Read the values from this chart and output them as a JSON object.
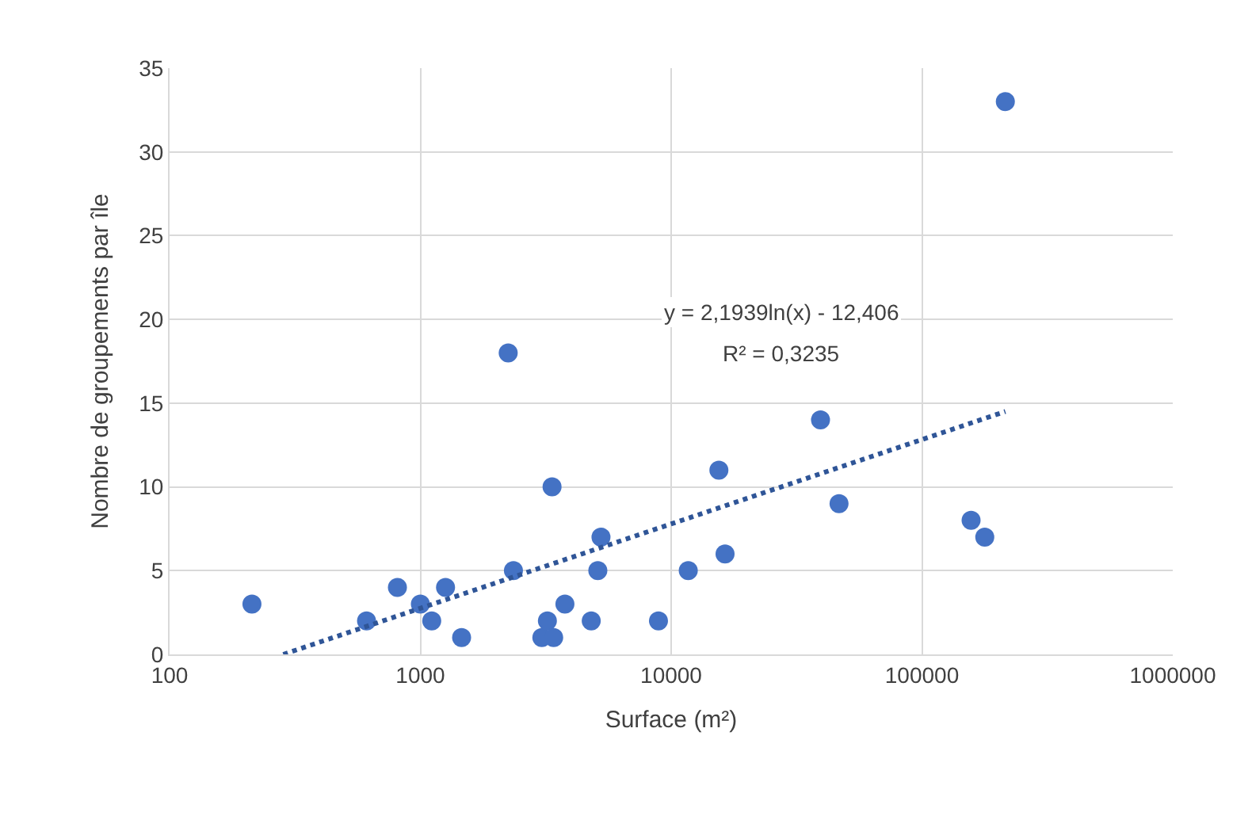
{
  "chart_data": {
    "type": "scatter",
    "xlabel": "Surface (m²)",
    "ylabel": "Nombre de groupements par île",
    "log": "x",
    "xlim": [
      100,
      1000000
    ],
    "xticks": [
      100,
      1000,
      10000,
      100000,
      1000000
    ],
    "ylim": [
      0,
      35
    ],
    "yticks": [
      0,
      5,
      10,
      15,
      20,
      25,
      30,
      35
    ],
    "grid": true,
    "marker": "circle",
    "annotations": [
      "y = 2,1939ln(x) - 12,406",
      "R² = 0,3235"
    ],
    "series": [
      {
        "color": "#4472c4",
        "x": [
          213,
          610,
          810,
          1000,
          1110,
          1260,
          1460,
          2240,
          2350,
          3050,
          3210,
          3350,
          3400,
          3770,
          4800,
          5100,
          5250,
          8900,
          11700,
          15500,
          16400,
          39400,
          46700,
          157000,
          178000,
          215000
        ],
        "values": [
          3,
          2,
          4,
          3,
          2,
          4,
          1,
          18,
          5,
          1,
          2,
          10,
          1,
          3,
          2,
          5,
          7,
          2,
          5,
          11,
          6,
          14,
          9,
          8,
          7,
          33
        ]
      },
      {
        "type": "line",
        "color": "#2f5597",
        "line_style": "dotted",
        "marker": "none",
        "x": [
          284,
          215000
        ],
        "values": [
          0,
          14.5
        ]
      }
    ]
  }
}
